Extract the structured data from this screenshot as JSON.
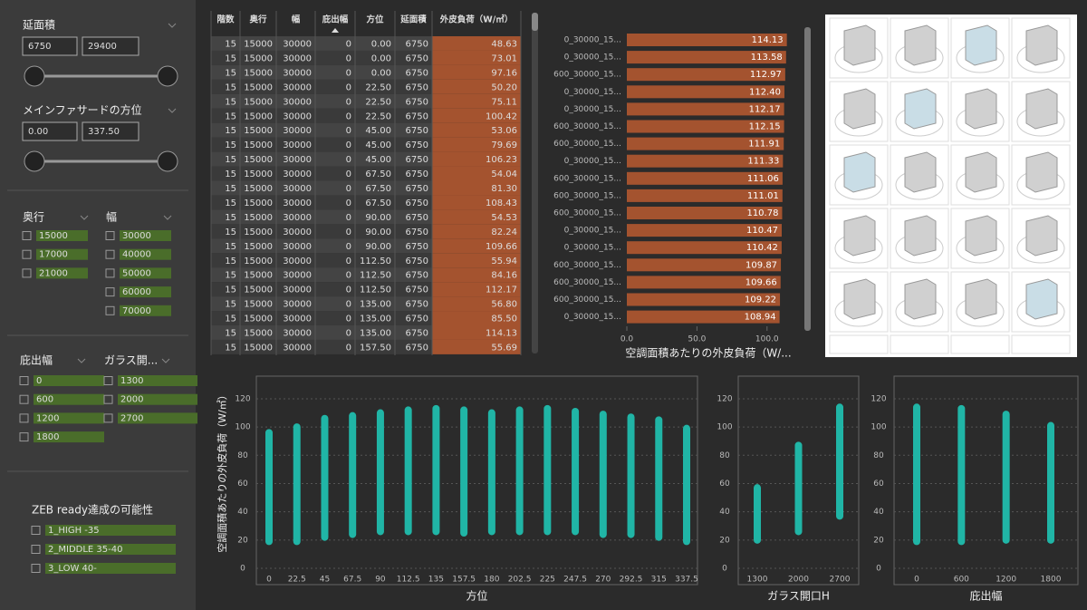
{
  "filters": {
    "area": {
      "title": "延面積",
      "min": "6750",
      "max": "29400"
    },
    "facade": {
      "title": "メインファサードの方位",
      "min": "0.00",
      "max": "337.50"
    },
    "depth": {
      "title": "奥行",
      "options": [
        "15000",
        "17000",
        "21000"
      ]
    },
    "width": {
      "title": "幅",
      "options": [
        "30000",
        "40000",
        "50000",
        "60000",
        "70000"
      ]
    },
    "eave": {
      "title": "庇出幅",
      "options": [
        "0",
        "600",
        "1200",
        "1800"
      ]
    },
    "glass": {
      "title": "ガラス開...",
      "options": [
        "1300",
        "2000",
        "2700"
      ]
    },
    "zeb": {
      "title": "ZEB ready達成の可能性",
      "options": [
        "1_HIGH -35",
        "2_MIDDLE 35-40",
        "3_LOW 40-"
      ]
    }
  },
  "table": {
    "columns": [
      "階数",
      "奥行",
      "幅",
      "庇出幅",
      "方位",
      "延面積",
      "外皮負荷（W/㎡）"
    ],
    "rows": [
      [
        "15",
        "15000",
        "30000",
        "0",
        "0.00",
        "6750",
        "48.63"
      ],
      [
        "15",
        "15000",
        "30000",
        "0",
        "0.00",
        "6750",
        "73.01"
      ],
      [
        "15",
        "15000",
        "30000",
        "0",
        "0.00",
        "6750",
        "97.16"
      ],
      [
        "15",
        "15000",
        "30000",
        "0",
        "22.50",
        "6750",
        "50.20"
      ],
      [
        "15",
        "15000",
        "30000",
        "0",
        "22.50",
        "6750",
        "75.11"
      ],
      [
        "15",
        "15000",
        "30000",
        "0",
        "22.50",
        "6750",
        "100.42"
      ],
      [
        "15",
        "15000",
        "30000",
        "0",
        "45.00",
        "6750",
        "53.06"
      ],
      [
        "15",
        "15000",
        "30000",
        "0",
        "45.00",
        "6750",
        "79.69"
      ],
      [
        "15",
        "15000",
        "30000",
        "0",
        "45.00",
        "6750",
        "106.23"
      ],
      [
        "15",
        "15000",
        "30000",
        "0",
        "67.50",
        "6750",
        "54.04"
      ],
      [
        "15",
        "15000",
        "30000",
        "0",
        "67.50",
        "6750",
        "81.30"
      ],
      [
        "15",
        "15000",
        "30000",
        "0",
        "67.50",
        "6750",
        "108.43"
      ],
      [
        "15",
        "15000",
        "30000",
        "0",
        "90.00",
        "6750",
        "54.53"
      ],
      [
        "15",
        "15000",
        "30000",
        "0",
        "90.00",
        "6750",
        "82.24"
      ],
      [
        "15",
        "15000",
        "30000",
        "0",
        "90.00",
        "6750",
        "109.66"
      ],
      [
        "15",
        "15000",
        "30000",
        "0",
        "112.50",
        "6750",
        "55.94"
      ],
      [
        "15",
        "15000",
        "30000",
        "0",
        "112.50",
        "6750",
        "84.16"
      ],
      [
        "15",
        "15000",
        "30000",
        "0",
        "112.50",
        "6750",
        "112.17"
      ],
      [
        "15",
        "15000",
        "30000",
        "0",
        "135.00",
        "6750",
        "56.80"
      ],
      [
        "15",
        "15000",
        "30000",
        "0",
        "135.00",
        "6750",
        "85.50"
      ],
      [
        "15",
        "15000",
        "30000",
        "0",
        "135.00",
        "6750",
        "114.13"
      ],
      [
        "15",
        "15000",
        "30000",
        "0",
        "157.50",
        "6750",
        "55.69"
      ]
    ]
  },
  "chart_data": [
    {
      "type": "bar",
      "orientation": "horizontal",
      "xlabel": "空調面積あたりの外皮負荷（W/...",
      "color": "#a4532f",
      "categories": [
        "0_30000_15...",
        "0_30000_15...",
        "600_30000_15...",
        "0_30000_15...",
        "0_30000_15...",
        "600_30000_15...",
        "600_30000_15...",
        "0_30000_15...",
        "600_30000_15...",
        "600_30000_15...",
        "600_30000_15...",
        "0_30000_15...",
        "0_30000_15...",
        "600_30000_15...",
        "600_30000_15...",
        "600_30000_15...",
        "0_30000_15..."
      ],
      "values": [
        114.13,
        113.58,
        112.97,
        112.4,
        112.17,
        112.15,
        111.91,
        111.33,
        111.06,
        111.01,
        110.78,
        110.47,
        110.42,
        109.87,
        109.66,
        109.22,
        108.94
      ],
      "value_labels": [
        "114.13",
        "113.58",
        "112.97",
        "112.40",
        "112.17",
        "112.15",
        "111.91",
        "111.33",
        "111.06",
        "111.01",
        "110.78",
        "110.47",
        "110.42",
        "109.87",
        "109.66",
        "109.22",
        "108.94"
      ],
      "xlim": [
        0,
        115
      ],
      "xticks": [
        {
          "value": 0,
          "label": "0.0"
        },
        {
          "value": 50,
          "label": "50.0"
        },
        {
          "value": 100,
          "label": "100.0"
        }
      ]
    },
    {
      "type": "scatter",
      "xlabel": "方位",
      "ylabel": "空調面積あたりの外皮負荷（W/㎡）",
      "color": "#20b5a6",
      "categories": [
        0,
        22.5,
        45,
        67.5,
        90,
        112.5,
        135,
        157.5,
        180,
        202.5,
        225,
        247.5,
        270,
        292.5,
        315,
        337.5
      ],
      "low": [
        19,
        19,
        22,
        24,
        26,
        26,
        26,
        25,
        26,
        26,
        26,
        26,
        24,
        24,
        22,
        19
      ],
      "high": [
        96,
        100,
        106,
        108,
        110,
        112,
        113,
        112,
        110,
        112,
        113,
        111,
        109,
        107,
        105,
        99
      ],
      "ylim": [
        0,
        136
      ],
      "yticks": [
        0,
        20,
        40,
        60,
        80,
        100,
        120
      ],
      "grid": true
    },
    {
      "type": "scatter",
      "xlabel": "ガラス開口H",
      "color": "#20b5a6",
      "categories": [
        1300,
        2000,
        2700
      ],
      "low": [
        20,
        26,
        37
      ],
      "high": [
        57,
        87,
        114
      ],
      "ylim": [
        0,
        136
      ],
      "yticks": [
        0,
        20,
        40,
        60,
        80,
        100,
        120
      ],
      "grid": true
    },
    {
      "type": "scatter",
      "xlabel": "庇出幅",
      "color": "#20b5a6",
      "categories": [
        0,
        600,
        1200,
        1800
      ],
      "low": [
        19,
        19,
        20,
        20
      ],
      "high": [
        114,
        113,
        109,
        101
      ],
      "ylim": [
        0,
        136
      ],
      "yticks": [
        0,
        20,
        40,
        60,
        80,
        100,
        120
      ],
      "grid": true
    }
  ]
}
